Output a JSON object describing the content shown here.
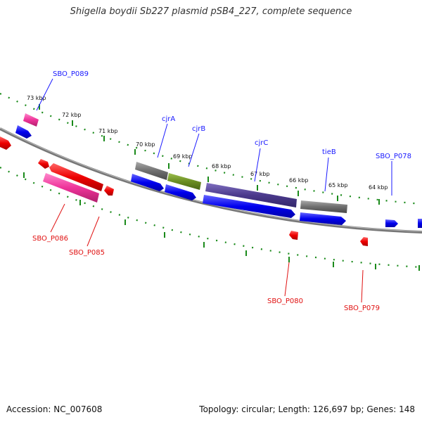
{
  "title": "Shigella boydii Sb227 plasmid pSB4_227, complete sequence",
  "footer": {
    "accession": "Accession: NC_007608",
    "summary": "Topology: circular; Length: 126,697 bp; Genes: 148"
  },
  "colors": {
    "forward_cds": "#0000ee",
    "reverse_cds": "#ee0000",
    "reverse_pseudo": "#ee3399",
    "gene_grey": "#6f6f6f",
    "gene_green": "#6b8e23",
    "gene_purple": "#4b3a8c",
    "backbone": "#888888",
    "tick": "#1a8a1a",
    "label_forward": "#1a1aff",
    "label_reverse": "#e01010"
  },
  "kbp_labels": [
    "73 kbp",
    "72 kbp",
    "71 kbp",
    "70 kbp",
    "69 kbp",
    "68 kbp",
    "67 kbp",
    "66 kbp",
    "65 kbp",
    "64 kbp"
  ],
  "gene_labels_forward": [
    "SBO_P089",
    "cjrA",
    "cjrB",
    "cjrC",
    "tieB",
    "SBO_P078"
  ],
  "gene_labels_reverse": [
    "SBO_P086",
    "SBO_P085",
    "SBO_P080",
    "SBO_P079"
  ]
}
